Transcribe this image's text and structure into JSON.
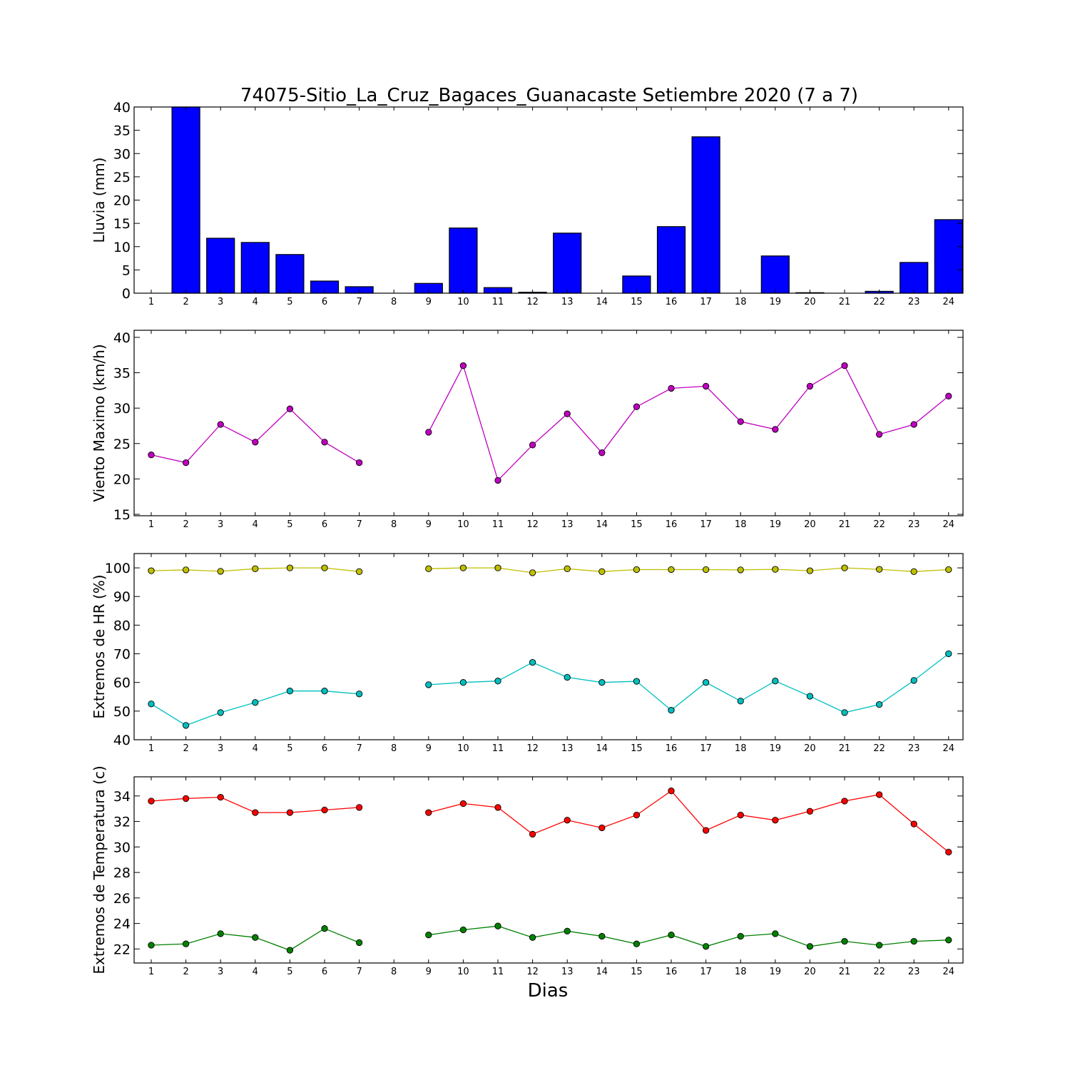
{
  "figure": {
    "title": "74075-Sitio_La_Cruz_Bagaces_Guanacaste Setiembre 2020  (7 a 7)",
    "xlabel": "Dias"
  },
  "chart_data": [
    {
      "type": "bar",
      "ylabel": "Lluvia (mm)",
      "ylim": [
        0,
        40
      ],
      "yticks": [
        0,
        5,
        10,
        15,
        20,
        25,
        30,
        35,
        40
      ],
      "categories": [
        1,
        2,
        3,
        4,
        5,
        6,
        7,
        8,
        9,
        10,
        11,
        12,
        13,
        14,
        15,
        16,
        17,
        18,
        19,
        20,
        21,
        22,
        23,
        24
      ],
      "colors": {
        "bar": "#0000ff"
      },
      "values": [
        0,
        40,
        11.8,
        10.9,
        8.3,
        2.6,
        1.4,
        0,
        2.1,
        14.0,
        1.2,
        0.2,
        12.9,
        0,
        3.7,
        14.3,
        33.6,
        0,
        8.0,
        0.1,
        0,
        0.4,
        6.6,
        15.8
      ]
    },
    {
      "type": "line",
      "ylabel": "Viento Maximo (km/h)",
      "ylim": [
        14.8,
        41.0
      ],
      "yticks": [
        15,
        20,
        25,
        30,
        35,
        40
      ],
      "x": [
        1,
        2,
        3,
        4,
        5,
        6,
        7,
        8,
        9,
        10,
        11,
        12,
        13,
        14,
        15,
        16,
        17,
        18,
        19,
        20,
        21,
        22,
        23,
        24
      ],
      "series": [
        {
          "color": "#bf00bf",
          "values": [
            23.4,
            22.3,
            27.7,
            25.2,
            29.9,
            25.2,
            22.3,
            null,
            26.6,
            36.0,
            19.8,
            24.8,
            29.2,
            23.7,
            30.2,
            32.8,
            33.1,
            28.1,
            27.0,
            33.1,
            36.0,
            26.3,
            27.7,
            31.7
          ]
        }
      ]
    },
    {
      "type": "line",
      "ylabel": "Extremos de HR (%)",
      "ylim": [
        40,
        105
      ],
      "yticks": [
        40,
        50,
        60,
        70,
        80,
        90,
        100
      ],
      "x": [
        1,
        2,
        3,
        4,
        5,
        6,
        7,
        8,
        9,
        10,
        11,
        12,
        13,
        14,
        15,
        16,
        17,
        18,
        19,
        20,
        21,
        22,
        23,
        24
      ],
      "series": [
        {
          "color": "#bfbf00",
          "values": [
            99,
            99.3,
            98.8,
            99.7,
            100,
            100,
            98.7,
            null,
            99.7,
            100,
            100,
            98.3,
            99.7,
            98.7,
            99.4,
            99.4,
            99.4,
            99.3,
            99.5,
            99.0,
            100,
            99.5,
            98.7,
            99.4
          ]
        },
        {
          "color": "#00bfbf",
          "values": [
            52.5,
            45.0,
            49.5,
            53.0,
            57.0,
            57.0,
            56.0,
            null,
            59.2,
            60.0,
            60.5,
            67.0,
            61.8,
            60.0,
            60.4,
            50.3,
            60.0,
            53.5,
            60.5,
            55.2,
            49.5,
            52.3,
            60.7,
            70.0
          ]
        }
      ]
    },
    {
      "type": "line",
      "ylabel": "Extremos de Temperatura (c)",
      "ylim": [
        20.9,
        35.5
      ],
      "yticks": [
        22,
        24,
        26,
        28,
        30,
        32,
        34
      ],
      "x": [
        1,
        2,
        3,
        4,
        5,
        6,
        7,
        8,
        9,
        10,
        11,
        12,
        13,
        14,
        15,
        16,
        17,
        18,
        19,
        20,
        21,
        22,
        23,
        24
      ],
      "series": [
        {
          "color": "#ff0000",
          "values": [
            33.6,
            33.8,
            33.9,
            32.7,
            32.7,
            32.9,
            33.1,
            null,
            32.7,
            33.4,
            33.1,
            31.0,
            32.1,
            31.5,
            32.5,
            34.4,
            31.3,
            32.5,
            32.1,
            32.8,
            33.6,
            34.1,
            31.8,
            29.6
          ]
        },
        {
          "color": "#008000",
          "values": [
            22.3,
            22.4,
            23.2,
            22.9,
            21.9,
            23.6,
            22.5,
            null,
            23.1,
            23.5,
            23.8,
            22.9,
            23.4,
            23.0,
            22.4,
            23.1,
            22.2,
            23.0,
            23.2,
            22.2,
            22.6,
            22.3,
            22.6,
            22.7
          ]
        }
      ]
    }
  ]
}
